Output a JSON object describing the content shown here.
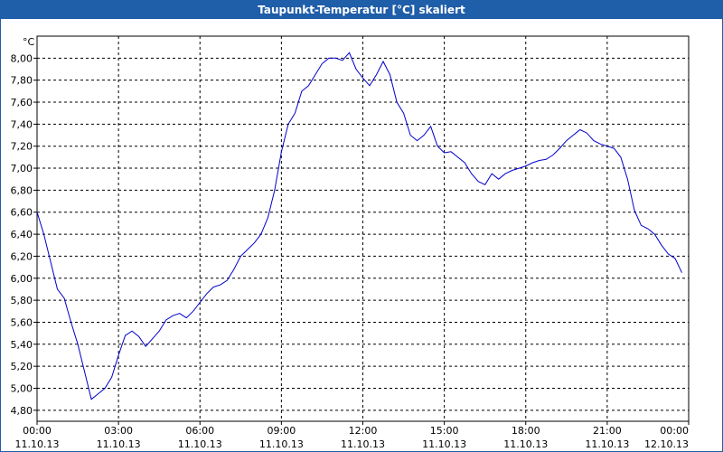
{
  "window": {
    "title": "Taupunkt-Temperatur [°C] skaliert"
  },
  "colors": {
    "titlebar": "#1f5ea8",
    "line": "#0000cc",
    "grid": "#000000"
  },
  "chart_data": {
    "type": "line",
    "title": "Taupunkt-Temperatur [°C] skaliert",
    "ylabel": "°C",
    "xlabel": "",
    "grid": true,
    "legend": "none",
    "ylim": [
      4.7,
      8.2
    ],
    "xlim": [
      "11.10.13 00:00",
      "12.10.13 00:00"
    ],
    "y_ticks": [
      "4,80",
      "5,00",
      "5,20",
      "5,40",
      "5,60",
      "5,80",
      "6,00",
      "6,20",
      "6,40",
      "6,60",
      "6,80",
      "7,00",
      "7,20",
      "7,40",
      "7,60",
      "7,80",
      "8,00"
    ],
    "y_tick_values": [
      4.8,
      5.0,
      5.2,
      5.4,
      5.6,
      5.8,
      6.0,
      6.2,
      6.4,
      6.6,
      6.8,
      7.0,
      7.2,
      7.4,
      7.6,
      7.8,
      8.0
    ],
    "x_ticks": [
      {
        "time": "00:00",
        "date": "11.10.13"
      },
      {
        "time": "03:00",
        "date": "11.10.13"
      },
      {
        "time": "06:00",
        "date": "11.10.13"
      },
      {
        "time": "09:00",
        "date": "11.10.13"
      },
      {
        "time": "12:00",
        "date": "11.10.13"
      },
      {
        "time": "15:00",
        "date": "11.10.13"
      },
      {
        "time": "18:00",
        "date": "11.10.13"
      },
      {
        "time": "21:00",
        "date": "11.10.13"
      },
      {
        "time": "00:00",
        "date": "12.10.13"
      }
    ],
    "series": [
      {
        "color": "#0000cc",
        "x_hours": [
          0,
          0.25,
          0.5,
          0.75,
          1.0,
          1.25,
          1.5,
          1.75,
          2.0,
          2.25,
          2.5,
          2.75,
          3.0,
          3.25,
          3.5,
          3.75,
          4.0,
          4.25,
          4.5,
          4.75,
          5.0,
          5.25,
          5.5,
          5.75,
          6.0,
          6.25,
          6.5,
          6.75,
          7.0,
          7.25,
          7.5,
          7.75,
          8.0,
          8.25,
          8.5,
          8.75,
          9.0,
          9.25,
          9.5,
          9.75,
          10.0,
          10.25,
          10.5,
          10.75,
          11.0,
          11.25,
          11.5,
          11.75,
          12.0,
          12.25,
          12.5,
          12.75,
          13.0,
          13.25,
          13.5,
          13.75,
          14.0,
          14.25,
          14.5,
          14.75,
          15.0,
          15.25,
          15.5,
          15.75,
          16.0,
          16.25,
          16.5,
          16.75,
          17.0,
          17.25,
          17.5,
          17.75,
          18.0,
          18.25,
          18.5,
          18.75,
          19.0,
          19.25,
          19.5,
          19.75,
          20.0,
          20.25,
          20.5,
          20.75,
          21.0,
          21.25,
          21.5,
          21.75,
          22.0,
          22.25,
          22.5,
          22.75,
          23.0,
          23.25,
          23.5,
          23.75
        ],
        "values": [
          6.6,
          6.4,
          6.15,
          5.9,
          5.82,
          5.6,
          5.4,
          5.15,
          4.9,
          4.95,
          5.0,
          5.1,
          5.3,
          5.48,
          5.52,
          5.47,
          5.38,
          5.45,
          5.52,
          5.62,
          5.66,
          5.68,
          5.64,
          5.7,
          5.78,
          5.86,
          5.92,
          5.94,
          5.98,
          6.08,
          6.2,
          6.26,
          6.32,
          6.4,
          6.55,
          6.8,
          7.15,
          7.4,
          7.5,
          7.7,
          7.75,
          7.85,
          7.95,
          8.0,
          8.0,
          7.98,
          8.05,
          7.9,
          7.82,
          7.75,
          7.85,
          7.97,
          7.85,
          7.6,
          7.5,
          7.3,
          7.25,
          7.3,
          7.38,
          7.2,
          7.14,
          7.15,
          7.1,
          7.05,
          6.95,
          6.88,
          6.85,
          6.95,
          6.9,
          6.95,
          6.98,
          7.0,
          7.02,
          7.05,
          7.07,
          7.08,
          7.12,
          7.18,
          7.25,
          7.3,
          7.35,
          7.32,
          7.25,
          7.22,
          7.2,
          7.18,
          7.1,
          6.9,
          6.62,
          6.48,
          6.45,
          6.4,
          6.3,
          6.22,
          6.18,
          6.05
        ]
      }
    ]
  }
}
